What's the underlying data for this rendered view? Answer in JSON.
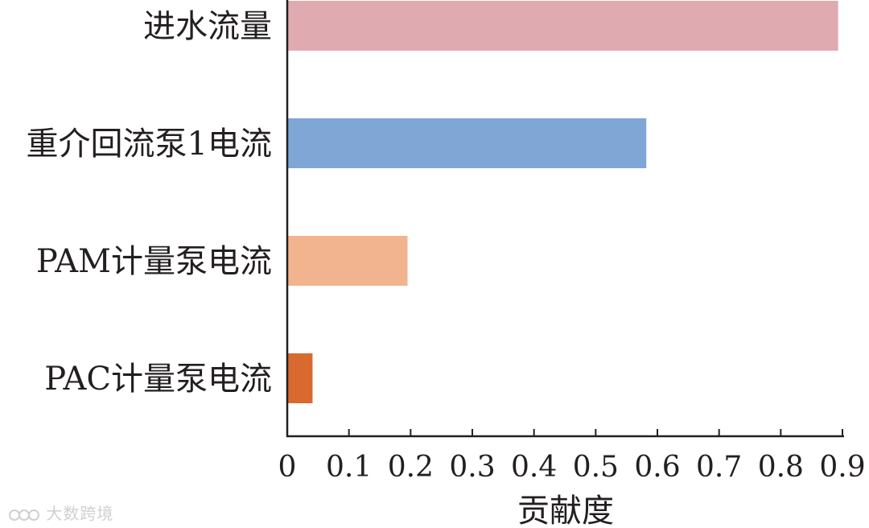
{
  "chart_data": {
    "type": "bar",
    "orientation": "horizontal",
    "categories": [
      "进水流量",
      "重介回流泵1电流",
      "PAM计量泵电流",
      "PAC计量泵电流"
    ],
    "values": [
      0.893,
      0.582,
      0.195,
      0.041
    ],
    "colors": [
      "#dfabb0",
      "#7fa6d4",
      "#f2b48e",
      "#d96a2f"
    ],
    "xlabel": "贡献度",
    "ylabel": "",
    "title": "",
    "xlim": [
      0,
      0.9
    ],
    "xticks": [
      "0",
      "0.1",
      "0.2",
      "0.3",
      "0.4",
      "0.5",
      "0.6",
      "0.7",
      "0.8",
      "0.9"
    ],
    "grid": false,
    "legend": "none"
  },
  "watermark": {
    "text": "大数跨境"
  }
}
